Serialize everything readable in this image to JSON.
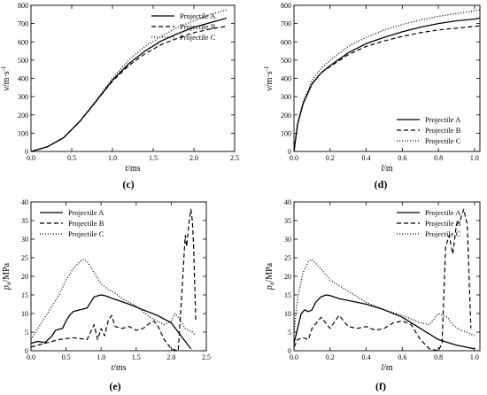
{
  "chart_data": [
    {
      "id": "c",
      "type": "line",
      "panel_label": "(c)",
      "xlabel_var": "t",
      "xlabel_unit": "/ms",
      "ylabel_var": "v",
      "ylabel_unit": "/m·s",
      "ylabel_sup": "-1",
      "xlim": [
        0,
        2.5
      ],
      "ylim": [
        0,
        800
      ],
      "xticks": [
        "0.0",
        "0.5",
        "1.0",
        "1.5",
        "2.0",
        "2.5"
      ],
      "yticks": [
        "0",
        "100",
        "200",
        "300",
        "400",
        "500",
        "600",
        "700",
        "800"
      ],
      "legend_position": "top-right",
      "series": [
        {
          "name": "Projectile A",
          "style": "solid",
          "x": [
            0,
            0.2,
            0.4,
            0.6,
            0.8,
            1.0,
            1.2,
            1.4,
            1.6,
            1.8,
            2.0,
            2.2,
            2.4
          ],
          "y": [
            0,
            25,
            75,
            165,
            275,
            390,
            480,
            550,
            605,
            645,
            680,
            705,
            730
          ]
        },
        {
          "name": "Projectile B",
          "style": "dashed",
          "x": [
            0,
            0.2,
            0.4,
            0.6,
            0.8,
            1.0,
            1.2,
            1.4,
            1.6,
            1.8,
            2.0,
            2.2,
            2.4
          ],
          "y": [
            0,
            25,
            75,
            165,
            275,
            385,
            470,
            535,
            585,
            620,
            650,
            670,
            685
          ]
        },
        {
          "name": "Projectile C",
          "style": "dotted",
          "x": [
            0,
            0.2,
            0.4,
            0.6,
            0.8,
            1.0,
            1.2,
            1.4,
            1.6,
            1.8,
            2.0,
            2.2,
            2.4
          ],
          "y": [
            0,
            25,
            75,
            165,
            280,
            400,
            500,
            575,
            630,
            680,
            715,
            750,
            775
          ]
        }
      ]
    },
    {
      "id": "d",
      "type": "line",
      "panel_label": "(d)",
      "xlabel_var": "l",
      "xlabel_unit": "/m",
      "ylabel_var": "v",
      "ylabel_unit": "/m·s",
      "ylabel_sup": "-1",
      "xlim": [
        0,
        1.03
      ],
      "ylim": [
        0,
        800
      ],
      "xticks": [
        "0.0",
        "0.2",
        "0.4",
        "0.6",
        "0.8",
        "1.0"
      ],
      "yticks": [
        "0",
        "100",
        "200",
        "300",
        "400",
        "500",
        "600",
        "700",
        "800"
      ],
      "legend_position": "bottom-right",
      "series": [
        {
          "name": "Projectile A",
          "style": "solid",
          "x": [
            0,
            0.02,
            0.05,
            0.1,
            0.15,
            0.2,
            0.3,
            0.4,
            0.5,
            0.6,
            0.7,
            0.8,
            0.9,
            1.0,
            1.03
          ],
          "y": [
            0,
            150,
            260,
            370,
            430,
            470,
            540,
            590,
            625,
            655,
            680,
            700,
            715,
            725,
            730
          ]
        },
        {
          "name": "Projectile B",
          "style": "dashed",
          "x": [
            0,
            0.02,
            0.05,
            0.1,
            0.15,
            0.2,
            0.3,
            0.4,
            0.5,
            0.6,
            0.7,
            0.8,
            0.9,
            1.0,
            1.03
          ],
          "y": [
            0,
            150,
            260,
            370,
            430,
            465,
            530,
            575,
            605,
            630,
            650,
            665,
            675,
            685,
            688
          ]
        },
        {
          "name": "Projectile C",
          "style": "dotted",
          "x": [
            0,
            0.02,
            0.05,
            0.1,
            0.15,
            0.2,
            0.3,
            0.4,
            0.5,
            0.6,
            0.7,
            0.8,
            0.9,
            1.0,
            1.03
          ],
          "y": [
            0,
            150,
            270,
            390,
            455,
            500,
            575,
            625,
            665,
            695,
            720,
            740,
            755,
            770,
            775
          ]
        }
      ]
    },
    {
      "id": "e",
      "type": "line",
      "panel_label": "(e)",
      "xlabel_var": "t",
      "xlabel_unit": "/ms",
      "ylabel_var": "p",
      "ylabel_sub": "u",
      "ylabel_unit": "/MPa",
      "xlim": [
        0,
        2.5
      ],
      "ylim": [
        0,
        40
      ],
      "xticks": [
        "0.0",
        "0.5",
        "1.0",
        "1.5",
        "2.0",
        "2.5"
      ],
      "yticks": [
        "0",
        "5",
        "10",
        "15",
        "20",
        "25",
        "30",
        "35",
        "40"
      ],
      "legend_position": "top-left",
      "series": [
        {
          "name": "Projectile A",
          "style": "solid",
          "x": [
            0,
            0.1,
            0.2,
            0.3,
            0.35,
            0.45,
            0.5,
            0.55,
            0.6,
            0.7,
            0.8,
            0.9,
            1.0,
            1.05,
            1.1,
            1.2,
            1.4,
            1.6,
            1.8,
            2.0,
            2.1,
            2.2,
            2.28
          ],
          "y": [
            2,
            2.5,
            2.2,
            4,
            5.5,
            6,
            8,
            9.5,
            10.5,
            11,
            11.5,
            14.5,
            15,
            14.8,
            14.5,
            13.8,
            12.5,
            11,
            9.5,
            7.5,
            5,
            2.5,
            0.5
          ]
        },
        {
          "name": "Projectile B",
          "style": "dashed",
          "x": [
            0,
            0.2,
            0.4,
            0.6,
            0.8,
            0.85,
            0.9,
            0.95,
            1.0,
            1.05,
            1.1,
            1.15,
            1.2,
            1.3,
            1.4,
            1.5,
            1.6,
            1.7,
            1.75,
            1.8,
            1.9,
            2.0,
            2.1,
            2.15,
            2.18,
            2.2,
            2.22,
            2.25,
            2.28,
            2.3,
            2.32,
            2.35
          ],
          "y": [
            1,
            2,
            3,
            3.5,
            3,
            5,
            7,
            3,
            6,
            4,
            8,
            9.5,
            6.5,
            6,
            6.5,
            5.5,
            6,
            7.5,
            8,
            7,
            3,
            0.5,
            0,
            15,
            25,
            31,
            28,
            34,
            38,
            35,
            28,
            8
          ]
        },
        {
          "name": "Projectile C",
          "style": "dotted",
          "x": [
            0,
            0.1,
            0.2,
            0.3,
            0.4,
            0.5,
            0.6,
            0.7,
            0.75,
            0.8,
            0.9,
            1.0,
            1.1,
            1.2,
            1.3,
            1.4,
            1.5,
            1.6,
            1.7,
            1.8,
            1.9,
            2.0,
            2.05,
            2.1,
            2.2,
            2.3,
            2.35
          ],
          "y": [
            3,
            6,
            9,
            12,
            15,
            19,
            22,
            24,
            24.5,
            24,
            21,
            18,
            16.5,
            15.5,
            14,
            13,
            12,
            10.5,
            9,
            8,
            7,
            8,
            10,
            9,
            6,
            5,
            4
          ]
        }
      ]
    },
    {
      "id": "f",
      "type": "line",
      "panel_label": "(f)",
      "xlabel_var": "l",
      "xlabel_unit": "/m",
      "ylabel_var": "p",
      "ylabel_sub": "u",
      "ylabel_unit": "/MPa",
      "xlim": [
        0,
        1.03
      ],
      "ylim": [
        0,
        40
      ],
      "xticks": [
        "0.0",
        "0.2",
        "0.4",
        "0.6",
        "0.8",
        "1.0"
      ],
      "yticks": [
        "0",
        "5",
        "10",
        "15",
        "20",
        "25",
        "30",
        "35",
        "40"
      ],
      "legend_position": "top-right",
      "series": [
        {
          "name": "Projectile A",
          "style": "solid",
          "x": [
            0,
            0.02,
            0.04,
            0.06,
            0.08,
            0.1,
            0.12,
            0.15,
            0.18,
            0.2,
            0.25,
            0.3,
            0.4,
            0.5,
            0.6,
            0.7,
            0.8,
            0.9,
            0.95,
            1.0
          ],
          "y": [
            2,
            6,
            10,
            11,
            10.5,
            11,
            13,
            14.5,
            15,
            14.8,
            14,
            13.5,
            12.5,
            11,
            9,
            6,
            3,
            1.5,
            1,
            0.5
          ]
        },
        {
          "name": "Projectile B",
          "style": "dashed",
          "x": [
            0,
            0.02,
            0.05,
            0.08,
            0.1,
            0.15,
            0.2,
            0.25,
            0.3,
            0.35,
            0.4,
            0.45,
            0.5,
            0.55,
            0.6,
            0.65,
            0.7,
            0.75,
            0.8,
            0.82,
            0.84,
            0.86,
            0.88,
            0.9,
            0.92,
            0.94,
            0.96,
            0.98
          ],
          "y": [
            1,
            3,
            3.5,
            3,
            6,
            9,
            6,
            9.5,
            6.5,
            6,
            6.5,
            5.5,
            6,
            7.5,
            8,
            7,
            3,
            0.5,
            0,
            2,
            28,
            31,
            26,
            34,
            35,
            38,
            34,
            6
          ]
        },
        {
          "name": "Projectile C",
          "style": "dotted",
          "x": [
            0,
            0.02,
            0.05,
            0.08,
            0.1,
            0.15,
            0.2,
            0.3,
            0.4,
            0.5,
            0.6,
            0.7,
            0.75,
            0.8,
            0.85,
            0.88,
            0.92,
            0.96,
            1.0
          ],
          "y": [
            5,
            14,
            21,
            24,
            24.5,
            22,
            19,
            16,
            13,
            11,
            9.5,
            7.5,
            7,
            10,
            9,
            7,
            5.5,
            5,
            4
          ]
        }
      ]
    }
  ]
}
